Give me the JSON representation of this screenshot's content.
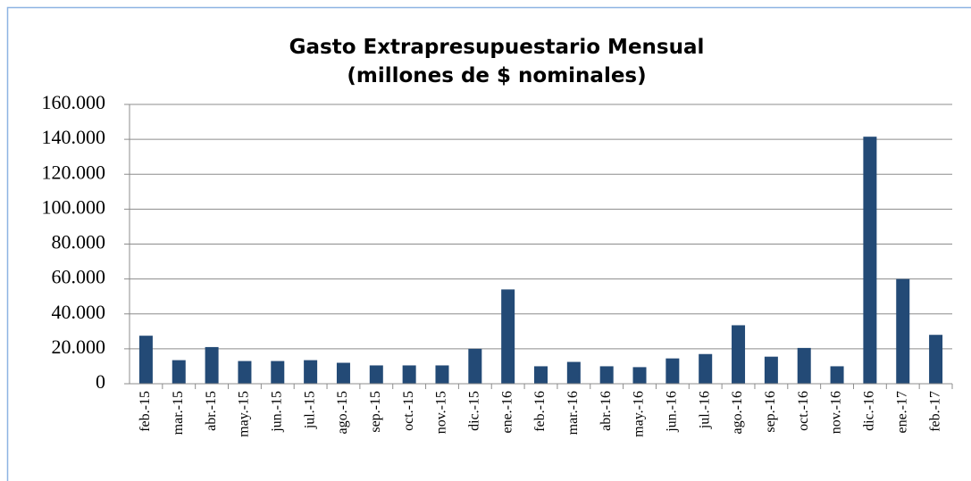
{
  "chart_data": {
    "type": "bar",
    "title": [
      "Gasto Extrapresupuestario Mensual",
      "(millones de $ nominales)"
    ],
    "categories": [
      "feb.-15",
      "mar.-15",
      "abr.-15",
      "may.-15",
      "jun.-15",
      "jul.-15",
      "ago.-15",
      "sep.-15",
      "oct.-15",
      "nov.-15",
      "dic.-15",
      "ene.-16",
      "feb.-16",
      "mar.-16",
      "abr.-16",
      "may.-16",
      "jun.-16",
      "jul.-16",
      "ago.-16",
      "sep.-16",
      "oct.-16",
      "nov.-16",
      "dic.-16",
      "ene.-17",
      "feb.-17"
    ],
    "values": [
      27500,
      13500,
      21000,
      13000,
      13000,
      13500,
      12000,
      10500,
      10500,
      10500,
      20000,
      54000,
      10000,
      12500,
      10000,
      9500,
      14500,
      17000,
      33500,
      15500,
      20500,
      10000,
      141500,
      60000,
      28000
    ],
    "color": "#234a76",
    "ylim": [
      0,
      160000
    ],
    "yticks": [
      0,
      {
        "value": 20000,
        "label": "20.000"
      },
      {
        "value": 40000,
        "label": "40.000"
      },
      {
        "value": 60000,
        "label": "60.000"
      },
      {
        "value": 80000,
        "label": "80.000"
      },
      {
        "value": 100000,
        "label": "100.000"
      },
      {
        "value": 120000,
        "label": "120.000"
      },
      {
        "value": 140000,
        "label": "140.000"
      },
      {
        "value": 160000,
        "label": "160.000"
      }
    ],
    "grid": true
  }
}
